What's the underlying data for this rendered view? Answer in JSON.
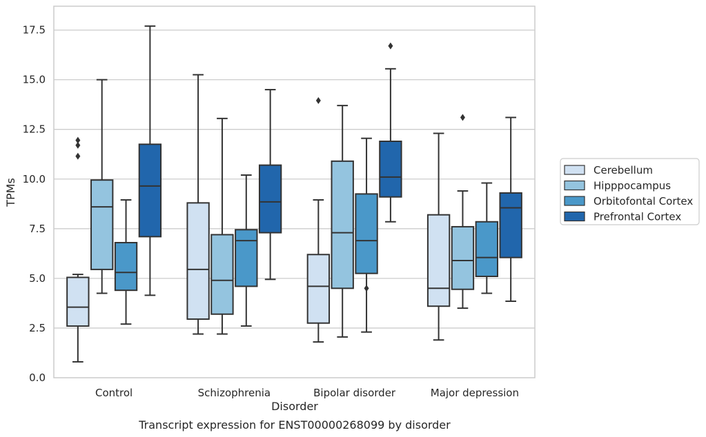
{
  "chart_data": {
    "type": "boxplot",
    "title": "",
    "caption": "Transcript expression for ENST00000268099 by disorder",
    "xlabel": "Disorder",
    "ylabel": "TPMs",
    "ylim": [
      0,
      18.7
    ],
    "yticks": [
      "0.0",
      "2.5",
      "5.0",
      "7.5",
      "10.0",
      "12.5",
      "15.0",
      "17.5"
    ],
    "grid": "horizontal",
    "legend_position": "right",
    "categories": [
      "Control",
      "Schizophrenia",
      "Bipolar disorder",
      "Major depression"
    ],
    "series": [
      {
        "name": "Cerebellum",
        "color": "#d0e1f2",
        "boxes": [
          {
            "whislo": 0.8,
            "q1": 2.6,
            "med": 3.55,
            "q3": 5.05,
            "whishi": 5.2,
            "fliers": [
              11.15,
              11.7,
              11.95
            ]
          },
          {
            "whislo": 2.2,
            "q1": 2.95,
            "med": 5.45,
            "q3": 8.8,
            "whishi": 15.25,
            "fliers": []
          },
          {
            "whislo": 1.8,
            "q1": 2.75,
            "med": 4.6,
            "q3": 6.2,
            "whishi": 8.95,
            "fliers": [
              13.95
            ]
          },
          {
            "whislo": 1.9,
            "q1": 3.6,
            "med": 4.5,
            "q3": 8.2,
            "whishi": 12.3,
            "fliers": []
          }
        ]
      },
      {
        "name": "Hipppocampus",
        "color": "#94c4df",
        "boxes": [
          {
            "whislo": 4.25,
            "q1": 5.45,
            "med": 8.6,
            "q3": 9.95,
            "whishi": 15.0,
            "fliers": []
          },
          {
            "whislo": 2.2,
            "q1": 3.2,
            "med": 4.9,
            "q3": 7.2,
            "whishi": 13.05,
            "fliers": []
          },
          {
            "whislo": 2.05,
            "q1": 4.5,
            "med": 7.3,
            "q3": 10.9,
            "whishi": 13.7,
            "fliers": []
          },
          {
            "whislo": 3.5,
            "q1": 4.45,
            "med": 5.9,
            "q3": 7.6,
            "whishi": 9.4,
            "fliers": [
              13.1
            ]
          }
        ]
      },
      {
        "name": "Orbitofontal Cortex",
        "color": "#4a98c9",
        "boxes": [
          {
            "whislo": 2.7,
            "q1": 4.4,
            "med": 5.3,
            "q3": 6.8,
            "whishi": 8.95,
            "fliers": []
          },
          {
            "whislo": 2.6,
            "q1": 4.6,
            "med": 6.9,
            "q3": 7.45,
            "whishi": 10.2,
            "fliers": []
          },
          {
            "whislo": 2.3,
            "q1": 5.25,
            "med": 6.9,
            "q3": 9.25,
            "whishi": 12.05,
            "fliers": [
              4.5
            ]
          },
          {
            "whislo": 4.25,
            "q1": 5.1,
            "med": 6.05,
            "q3": 7.85,
            "whishi": 9.8,
            "fliers": []
          }
        ]
      },
      {
        "name": "Prefrontal Cortex",
        "color": "#2166ac",
        "boxes": [
          {
            "whislo": 4.15,
            "q1": 7.1,
            "med": 9.65,
            "q3": 11.75,
            "whishi": 17.7,
            "fliers": []
          },
          {
            "whislo": 4.95,
            "q1": 7.3,
            "med": 8.85,
            "q3": 10.7,
            "whishi": 14.5,
            "fliers": []
          },
          {
            "whislo": 7.85,
            "q1": 9.1,
            "med": 10.1,
            "q3": 11.9,
            "whishi": 15.55,
            "fliers": [
              16.7
            ]
          },
          {
            "whislo": 3.85,
            "q1": 6.05,
            "med": 8.55,
            "q3": 9.3,
            "whishi": 13.1,
            "fliers": []
          }
        ]
      }
    ]
  }
}
